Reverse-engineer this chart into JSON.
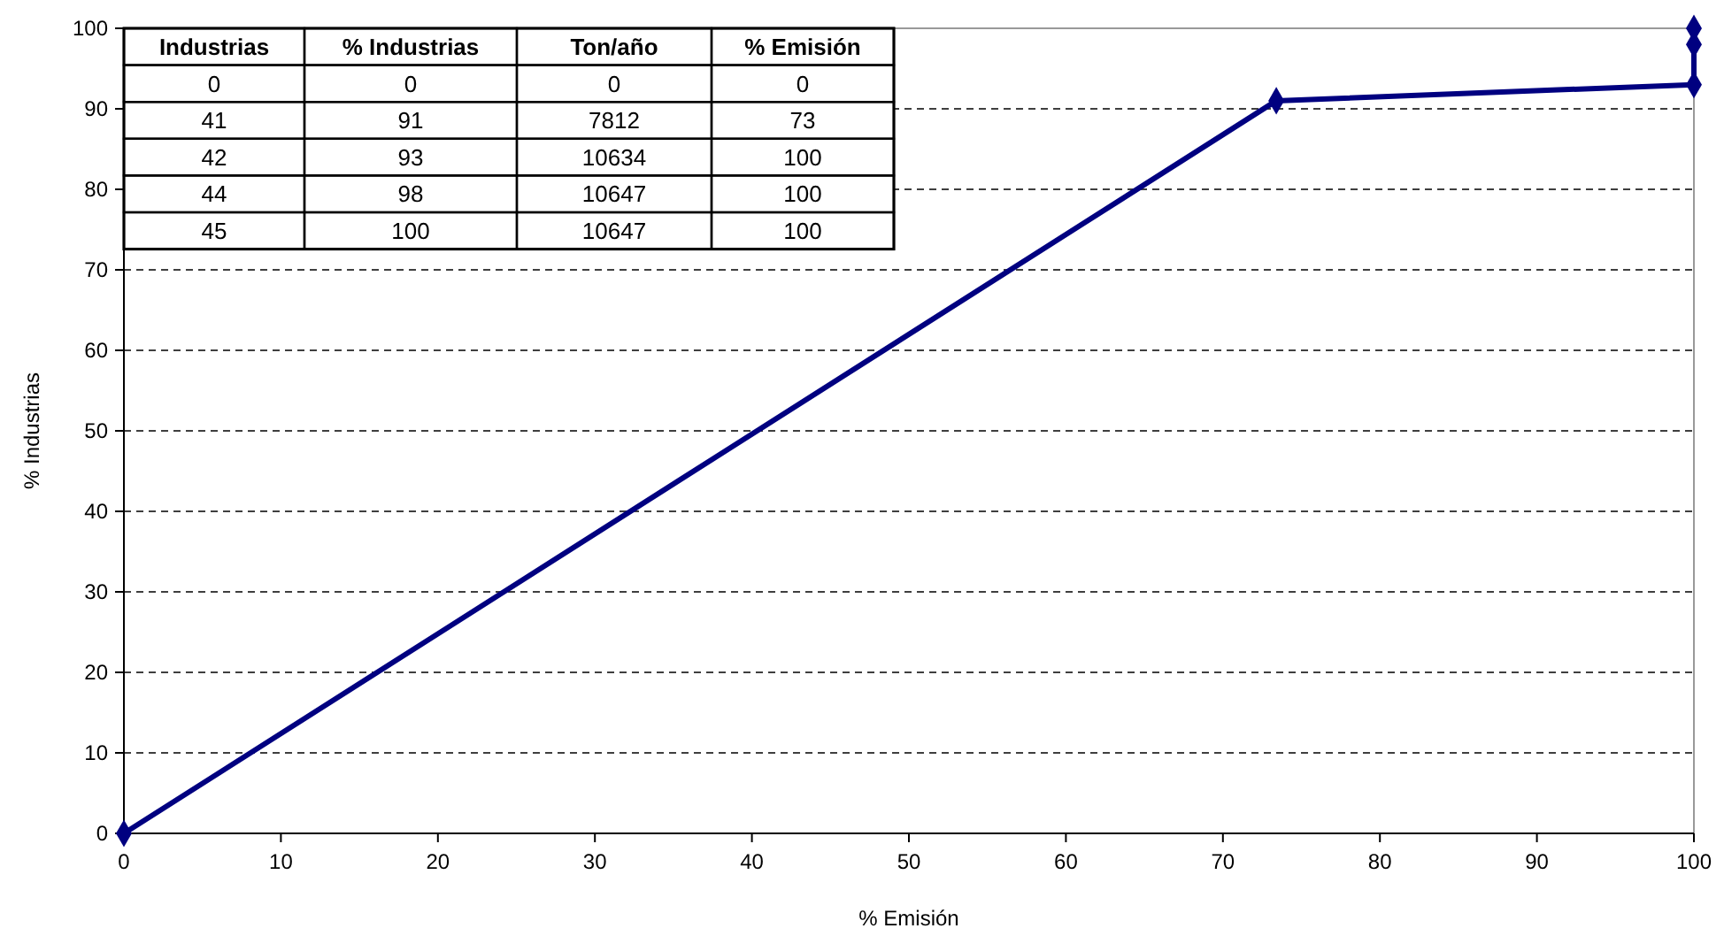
{
  "chart_data": {
    "type": "line",
    "xlabel": "% Emisión",
    "ylabel": "% Industrias",
    "x": [
      0,
      73.4,
      100,
      100,
      100
    ],
    "values": [
      0,
      91,
      93,
      98,
      100
    ],
    "color": "#000080",
    "marker": "diamond",
    "line_style": "solid",
    "grid": "y",
    "xlim": [
      0,
      100
    ],
    "xticks": [
      0,
      10,
      20,
      30,
      40,
      50,
      60,
      70,
      80,
      90,
      100
    ],
    "ylim": [
      0,
      100
    ],
    "yticks": [
      0,
      10,
      20,
      30,
      40,
      50,
      60,
      70,
      80,
      90,
      100
    ],
    "annotations": [
      "Industrias",
      "% Industrias",
      "Ton/año",
      "% Emisión",
      "0",
      "0",
      "0",
      "0",
      "41",
      "91",
      "7812",
      "73",
      "42",
      "93",
      "10634",
      "100",
      "44",
      "98",
      "10647",
      "100",
      "45",
      "100",
      "10647",
      "100"
    ]
  }
}
